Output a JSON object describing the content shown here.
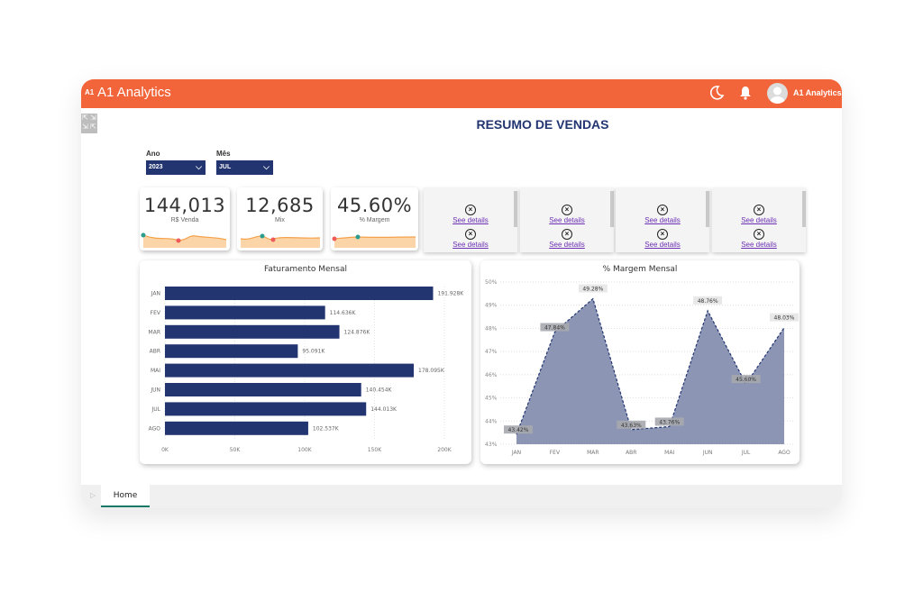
{
  "app": {
    "logo_text": "A1",
    "title": "A1 Analytics",
    "user_name": "A1 Analytics",
    "icons": [
      "moon-icon",
      "bell-icon",
      "avatar-icon",
      "expand-icon"
    ],
    "colors": {
      "header": "#f2643a",
      "navy": "#223571",
      "link": "#6b2fb3",
      "tab_underline": "#117865"
    }
  },
  "page": {
    "title": "RESUMO DE VENDAS"
  },
  "filters": [
    {
      "label": "Ano",
      "value": "2023"
    },
    {
      "label": "Mês",
      "value": "JUL"
    }
  ],
  "kpis": [
    {
      "value": "144,013",
      "label": "R$ Venda"
    },
    {
      "value": "12,685",
      "label": "Mix"
    },
    {
      "value": "45.60%",
      "label": "% Margem"
    }
  ],
  "error_cards": [
    {
      "link": "See details",
      "link2": "See details"
    },
    {
      "link": "See details",
      "link2": "See details"
    },
    {
      "link": "See details",
      "link2": "See details"
    },
    {
      "link": "See details",
      "link2": "See details"
    }
  ],
  "chart_data": [
    {
      "type": "bar",
      "orientation": "horizontal",
      "title": "Faturamento Mensal",
      "categories": [
        "JAN",
        "FEV",
        "MAR",
        "ABR",
        "MAI",
        "JUN",
        "JUL",
        "AGO"
      ],
      "values": [
        191928,
        114636,
        124876,
        95091,
        178095,
        140454,
        144013,
        102537
      ],
      "data_labels": [
        "191.928K",
        "114.636K",
        "124.876K",
        "95.091K",
        "178.095K",
        "140.454K",
        "144.013K",
        "102.537K"
      ],
      "xlim": [
        0,
        200000
      ],
      "xticks": [
        "0K",
        "50K",
        "100K",
        "150K",
        "200K"
      ],
      "color": "#223571",
      "grid": true
    },
    {
      "type": "area",
      "title": "% Margem Mensal",
      "categories": [
        "JAN",
        "FEV",
        "MAR",
        "ABR",
        "MAI",
        "JUN",
        "JUL",
        "AGO"
      ],
      "values": [
        43.42,
        47.84,
        49.28,
        43.63,
        43.76,
        48.76,
        45.6,
        48.03
      ],
      "data_labels": [
        "43.42%",
        "47.84%",
        "49.28%",
        "43.63%",
        "43.76%",
        "48.76%",
        "45.60%",
        "48.03%"
      ],
      "ylim": [
        43,
        50
      ],
      "yticks": [
        "43%",
        "44%",
        "45%",
        "46%",
        "47%",
        "48%",
        "49%",
        "50%"
      ],
      "color": "#8c96b4",
      "grid": true
    }
  ],
  "tabs": [
    {
      "label": "Home",
      "active": true
    }
  ]
}
